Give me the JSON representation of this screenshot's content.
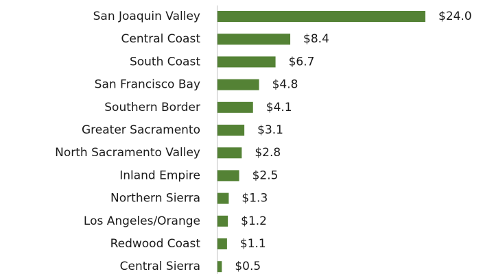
{
  "chart_data": {
    "type": "hbar",
    "categories": [
      "San Joaquin Valley",
      "Central Coast",
      "South Coast",
      "San Francisco Bay",
      "Southern Border",
      "Greater Sacramento",
      "North Sacramento Valley",
      "Inland Empire",
      "Northern Sierra",
      "Los Angeles/Orange",
      "Redwood Coast",
      "Central Sierra"
    ],
    "values": [
      24.0,
      8.4,
      6.7,
      4.8,
      4.1,
      3.1,
      2.8,
      2.5,
      1.3,
      1.2,
      1.1,
      0.5
    ],
    "value_labels": [
      "$24.0",
      "$8.4",
      "$6.7",
      "$4.8",
      "$4.1",
      "$3.1",
      "$2.8",
      "$2.5",
      "$1.3",
      "$1.2",
      "$1.1",
      "$0.5"
    ],
    "color": "#548235"
  }
}
